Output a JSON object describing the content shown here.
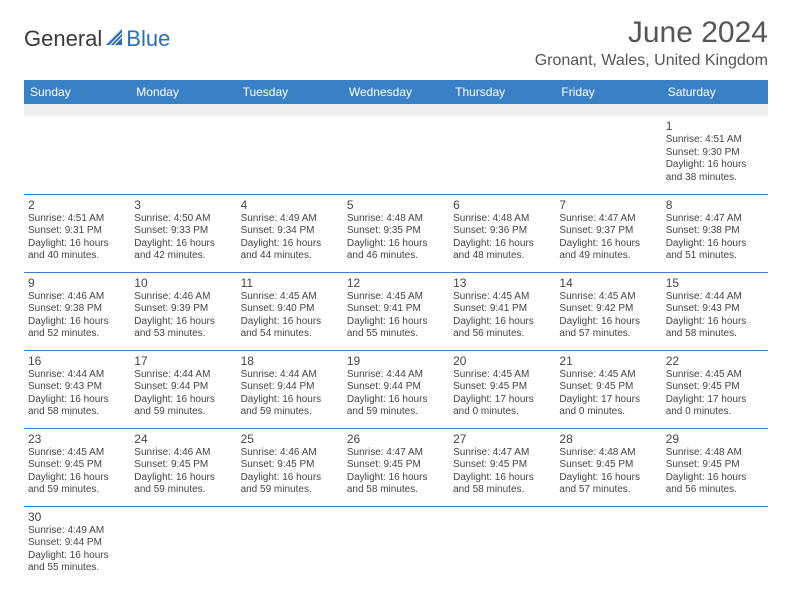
{
  "logo": {
    "part1": "General",
    "part2": "Blue"
  },
  "title": "June 2024",
  "location": "Gronant, Wales, United Kingdom",
  "colors": {
    "header_bg": "#3a80c4",
    "header_text": "#ffffff",
    "cell_border": "#3a80c4",
    "blank_bg": "#efefef",
    "logo_accent": "#2a6fb5"
  },
  "day_headers": [
    "Sunday",
    "Monday",
    "Tuesday",
    "Wednesday",
    "Thursday",
    "Friday",
    "Saturday"
  ],
  "weeks": [
    {
      "blank_before": true,
      "days": [
        null,
        null,
        null,
        null,
        null,
        null,
        {
          "n": "1",
          "sunrise": "Sunrise: 4:51 AM",
          "sunset": "Sunset: 9:30 PM",
          "daylight": "Daylight: 16 hours and 38 minutes."
        }
      ]
    },
    {
      "days": [
        {
          "n": "2",
          "sunrise": "Sunrise: 4:51 AM",
          "sunset": "Sunset: 9:31 PM",
          "daylight": "Daylight: 16 hours and 40 minutes."
        },
        {
          "n": "3",
          "sunrise": "Sunrise: 4:50 AM",
          "sunset": "Sunset: 9:33 PM",
          "daylight": "Daylight: 16 hours and 42 minutes."
        },
        {
          "n": "4",
          "sunrise": "Sunrise: 4:49 AM",
          "sunset": "Sunset: 9:34 PM",
          "daylight": "Daylight: 16 hours and 44 minutes."
        },
        {
          "n": "5",
          "sunrise": "Sunrise: 4:48 AM",
          "sunset": "Sunset: 9:35 PM",
          "daylight": "Daylight: 16 hours and 46 minutes."
        },
        {
          "n": "6",
          "sunrise": "Sunrise: 4:48 AM",
          "sunset": "Sunset: 9:36 PM",
          "daylight": "Daylight: 16 hours and 48 minutes."
        },
        {
          "n": "7",
          "sunrise": "Sunrise: 4:47 AM",
          "sunset": "Sunset: 9:37 PM",
          "daylight": "Daylight: 16 hours and 49 minutes."
        },
        {
          "n": "8",
          "sunrise": "Sunrise: 4:47 AM",
          "sunset": "Sunset: 9:38 PM",
          "daylight": "Daylight: 16 hours and 51 minutes."
        }
      ]
    },
    {
      "days": [
        {
          "n": "9",
          "sunrise": "Sunrise: 4:46 AM",
          "sunset": "Sunset: 9:38 PM",
          "daylight": "Daylight: 16 hours and 52 minutes."
        },
        {
          "n": "10",
          "sunrise": "Sunrise: 4:46 AM",
          "sunset": "Sunset: 9:39 PM",
          "daylight": "Daylight: 16 hours and 53 minutes."
        },
        {
          "n": "11",
          "sunrise": "Sunrise: 4:45 AM",
          "sunset": "Sunset: 9:40 PM",
          "daylight": "Daylight: 16 hours and 54 minutes."
        },
        {
          "n": "12",
          "sunrise": "Sunrise: 4:45 AM",
          "sunset": "Sunset: 9:41 PM",
          "daylight": "Daylight: 16 hours and 55 minutes."
        },
        {
          "n": "13",
          "sunrise": "Sunrise: 4:45 AM",
          "sunset": "Sunset: 9:41 PM",
          "daylight": "Daylight: 16 hours and 56 minutes."
        },
        {
          "n": "14",
          "sunrise": "Sunrise: 4:45 AM",
          "sunset": "Sunset: 9:42 PM",
          "daylight": "Daylight: 16 hours and 57 minutes."
        },
        {
          "n": "15",
          "sunrise": "Sunrise: 4:44 AM",
          "sunset": "Sunset: 9:43 PM",
          "daylight": "Daylight: 16 hours and 58 minutes."
        }
      ]
    },
    {
      "days": [
        {
          "n": "16",
          "sunrise": "Sunrise: 4:44 AM",
          "sunset": "Sunset: 9:43 PM",
          "daylight": "Daylight: 16 hours and 58 minutes."
        },
        {
          "n": "17",
          "sunrise": "Sunrise: 4:44 AM",
          "sunset": "Sunset: 9:44 PM",
          "daylight": "Daylight: 16 hours and 59 minutes."
        },
        {
          "n": "18",
          "sunrise": "Sunrise: 4:44 AM",
          "sunset": "Sunset: 9:44 PM",
          "daylight": "Daylight: 16 hours and 59 minutes."
        },
        {
          "n": "19",
          "sunrise": "Sunrise: 4:44 AM",
          "sunset": "Sunset: 9:44 PM",
          "daylight": "Daylight: 16 hours and 59 minutes."
        },
        {
          "n": "20",
          "sunrise": "Sunrise: 4:45 AM",
          "sunset": "Sunset: 9:45 PM",
          "daylight": "Daylight: 17 hours and 0 minutes."
        },
        {
          "n": "21",
          "sunrise": "Sunrise: 4:45 AM",
          "sunset": "Sunset: 9:45 PM",
          "daylight": "Daylight: 17 hours and 0 minutes."
        },
        {
          "n": "22",
          "sunrise": "Sunrise: 4:45 AM",
          "sunset": "Sunset: 9:45 PM",
          "daylight": "Daylight: 17 hours and 0 minutes."
        }
      ]
    },
    {
      "days": [
        {
          "n": "23",
          "sunrise": "Sunrise: 4:45 AM",
          "sunset": "Sunset: 9:45 PM",
          "daylight": "Daylight: 16 hours and 59 minutes."
        },
        {
          "n": "24",
          "sunrise": "Sunrise: 4:46 AM",
          "sunset": "Sunset: 9:45 PM",
          "daylight": "Daylight: 16 hours and 59 minutes."
        },
        {
          "n": "25",
          "sunrise": "Sunrise: 4:46 AM",
          "sunset": "Sunset: 9:45 PM",
          "daylight": "Daylight: 16 hours and 59 minutes."
        },
        {
          "n": "26",
          "sunrise": "Sunrise: 4:47 AM",
          "sunset": "Sunset: 9:45 PM",
          "daylight": "Daylight: 16 hours and 58 minutes."
        },
        {
          "n": "27",
          "sunrise": "Sunrise: 4:47 AM",
          "sunset": "Sunset: 9:45 PM",
          "daylight": "Daylight: 16 hours and 58 minutes."
        },
        {
          "n": "28",
          "sunrise": "Sunrise: 4:48 AM",
          "sunset": "Sunset: 9:45 PM",
          "daylight": "Daylight: 16 hours and 57 minutes."
        },
        {
          "n": "29",
          "sunrise": "Sunrise: 4:48 AM",
          "sunset": "Sunset: 9:45 PM",
          "daylight": "Daylight: 16 hours and 56 minutes."
        }
      ]
    },
    {
      "days": [
        {
          "n": "30",
          "sunrise": "Sunrise: 4:49 AM",
          "sunset": "Sunset: 9:44 PM",
          "daylight": "Daylight: 16 hours and 55 minutes."
        },
        null,
        null,
        null,
        null,
        null,
        null
      ]
    }
  ]
}
